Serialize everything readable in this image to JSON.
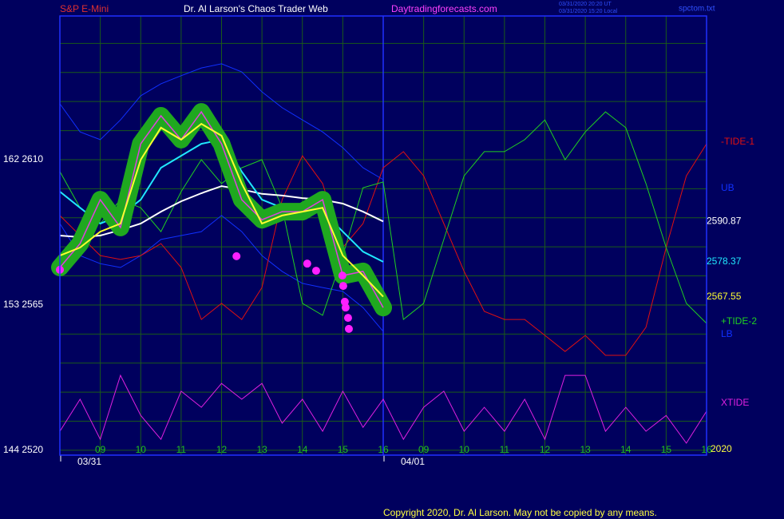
{
  "header": {
    "left": "S&P E-Mini",
    "center": "Dr. Al Larson's Chaos Trader Web",
    "site": "Daytradingforecasts.com",
    "time_ut": "03/31/2020 20:20 UT",
    "time_local": "03/31/2020 15:20 Local",
    "file": "spctom.txt"
  },
  "footer": "Copyright 2020, Dr. Al Larson. May not be copied by any means.",
  "chart_data": {
    "type": "line",
    "year": "2020",
    "day_labels": [
      "03/31",
      "04/01"
    ],
    "xlim": [
      0,
      16
    ],
    "ylim": [
      2518.5,
      2654.5
    ],
    "yticks": [
      {
        "value": 2520,
        "label": "144 2520"
      },
      {
        "value": 2565,
        "label": "153 2565"
      },
      {
        "value": 2610,
        "label": "162 2610"
      }
    ],
    "ygrid": [
      2520,
      2529,
      2538,
      2547,
      2556,
      2565,
      2574,
      2583,
      2592,
      2601,
      2610,
      2619,
      2628,
      2637,
      2646
    ],
    "xticks": [
      {
        "value": 1,
        "label": "09"
      },
      {
        "value": 2,
        "label": "10"
      },
      {
        "value": 3,
        "label": "11"
      },
      {
        "value": 4,
        "label": "12"
      },
      {
        "value": 5,
        "label": "13"
      },
      {
        "value": 6,
        "label": "14"
      },
      {
        "value": 7,
        "label": "15"
      },
      {
        "value": 8,
        "label": "16"
      },
      {
        "value": 9,
        "label": "09"
      },
      {
        "value": 10,
        "label": "10"
      },
      {
        "value": 11,
        "label": "11"
      },
      {
        "value": 12,
        "label": "12"
      },
      {
        "value": 13,
        "label": "13"
      },
      {
        "value": 14,
        "label": "14"
      },
      {
        "value": 15,
        "label": "15"
      },
      {
        "value": 16,
        "label": "16"
      }
    ],
    "grid": true,
    "grid_color": "#1a5a1a",
    "x": [
      0,
      0.5,
      1,
      1.5,
      2,
      2.5,
      3,
      3.5,
      4,
      4.5,
      5,
      5.5,
      6,
      6.5,
      7,
      7.5,
      8,
      8.5,
      9,
      9.5,
      10,
      10.5,
      11,
      11.5,
      12,
      12.5,
      13,
      13.5,
      14,
      14.5,
      15,
      15.5,
      16
    ],
    "series": [
      {
        "name": "UB",
        "color": "#1030ff",
        "values": [
          2627.3,
          2618.6,
          2616.2,
          2622.3,
          2629.8,
          2633.5,
          2636.0,
          2638.4,
          2639.7,
          2637.2,
          2631.0,
          2626.1,
          2622.3,
          2618.6,
          2613.7,
          2607.5,
          2603.8,
          null,
          null,
          null,
          null,
          null,
          null,
          null,
          null,
          null,
          null,
          null,
          null,
          null,
          null,
          null,
          null
        ]
      },
      {
        "name": "LB",
        "color": "#1030ff",
        "values": [
          2590.2,
          2580.3,
          2577.8,
          2576.6,
          2580.3,
          2585.3,
          2586.5,
          2587.7,
          2592.7,
          2587.7,
          2580.3,
          2575.4,
          2571.7,
          2570.4,
          2569.2,
          2564.2,
          2556.8,
          null,
          null,
          null,
          null,
          null,
          null,
          null,
          null,
          null,
          null,
          null,
          null,
          null,
          null,
          null,
          null
        ]
      },
      {
        "name": "-TIDE-1",
        "color": "#e01010",
        "values": [
          2592.7,
          2586.5,
          2580.3,
          2579.1,
          2580.3,
          2584.0,
          2576.6,
          2560.5,
          2565.5,
          2560.5,
          2570.4,
          2597.6,
          2611.2,
          2602.6,
          2582.8,
          2590.2,
          2607.5,
          2612.5,
          2605.0,
          2590.2,
          2575.4,
          2563.0,
          2560.5,
          2560.5,
          2555.6,
          2550.6,
          2555.6,
          2549.4,
          2549.4,
          2558.1,
          2582.8,
          2605.0,
          2614.9
        ]
      },
      {
        "name": "+TIDE-2",
        "color": "#20d020",
        "values": [
          2606.3,
          2595.1,
          2590.2,
          2597.6,
          2595.1,
          2587.7,
          2600.1,
          2610.0,
          2602.6,
          2607.5,
          2610.0,
          2595.1,
          2565.5,
          2561.8,
          2580.3,
          2601.3,
          2603.1,
          2560.5,
          2565.5,
          2585.3,
          2605.0,
          2612.5,
          2612.5,
          2616.2,
          2622.3,
          2610.0,
          2618.6,
          2624.8,
          2619.9,
          2602.6,
          2582.8,
          2565.5,
          2559.3
        ]
      },
      {
        "name": "XTIDE",
        "color": "#e020e0",
        "values": [
          2525.9,
          2535.8,
          2523.4,
          2543.2,
          2530.8,
          2523.4,
          2538.3,
          2533.3,
          2540.7,
          2535.8,
          2540.7,
          2528.4,
          2535.8,
          2525.9,
          2538.3,
          2527.1,
          2535.8,
          2523.4,
          2533.3,
          2538.3,
          2525.9,
          2533.3,
          2525.9,
          2535.8,
          2523.4,
          2543.2,
          2543.2,
          2525.9,
          2533.3,
          2525.9,
          2530.8,
          2522.2,
          2532.1
        ]
      },
      {
        "color": "#ffffff",
        "end_label": "2590.87",
        "values": [
          2586.5,
          2586.0,
          2586.5,
          2588.2,
          2590.2,
          2593.9,
          2597.1,
          2599.6,
          2601.8,
          2600.8,
          2599.4,
          2598.9,
          2598.1,
          2597.6,
          2596.4,
          2593.9,
          2590.87,
          null,
          null,
          null,
          null,
          null,
          null,
          null,
          null,
          null,
          null,
          null,
          null,
          null,
          null,
          null,
          null
        ]
      },
      {
        "color": "#20e8ff",
        "end_label": "2578.37",
        "values": [
          2600.1,
          2595.1,
          2590.2,
          2592.7,
          2597.6,
          2607.5,
          2611.2,
          2614.9,
          2616.2,
          2606.3,
          2597.6,
          2595.1,
          2593.9,
          2593.9,
          2587.7,
          2581.5,
          2578.37,
          null,
          null,
          null,
          null,
          null,
          null,
          null,
          null,
          null,
          null,
          null,
          null,
          null,
          null,
          null,
          null
        ]
      },
      {
        "color": "#e040e0",
        "band_color": "#1fa81f",
        "values": [
          2576.6,
          2584.0,
          2597.6,
          2589.0,
          2614.9,
          2623.6,
          2616.2,
          2624.8,
          2614.9,
          2597.6,
          2591.4,
          2593.9,
          2593.9,
          2597.6,
          2574.1,
          2575.4,
          2564.2,
          null,
          null,
          null,
          null,
          null,
          null,
          null,
          null,
          null,
          null,
          null,
          null,
          null,
          null,
          null,
          null
        ]
      },
      {
        "color": "#ffff30",
        "end_label": "2567.55",
        "values": [
          2580.3,
          2582.8,
          2587.7,
          2590.2,
          2610.0,
          2619.9,
          2616.2,
          2621.1,
          2617.4,
          2602.6,
          2590.2,
          2592.7,
          2593.9,
          2595.1,
          2580.3,
          2574.1,
          2567.55,
          null,
          null,
          null,
          null,
          null,
          null,
          null,
          null,
          null,
          null,
          null,
          null,
          null,
          null,
          null,
          null
        ]
      }
    ],
    "markers": {
      "color": "#ff20ff",
      "x": [
        0,
        4.37,
        6.12,
        6.34,
        6.99,
        7.01,
        7.05,
        7.07,
        7.13,
        7.15
      ],
      "values": [
        2575.9,
        2580.1,
        2577.8,
        2575.6,
        2574.1,
        2570.9,
        2566.0,
        2564.2,
        2561.0,
        2557.6
      ]
    }
  }
}
